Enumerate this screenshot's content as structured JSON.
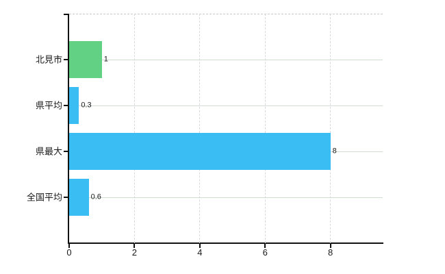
{
  "chart_data": {
    "type": "bar",
    "orientation": "horizontal",
    "title": "",
    "xlabel": "",
    "ylabel": "",
    "categories": [
      "北見市",
      "県平均",
      "県最大",
      "全国平均"
    ],
    "values": [
      1,
      0.3,
      8,
      0.6
    ],
    "value_labels": [
      "1",
      "0.3",
      "8",
      "0.6"
    ],
    "series": [
      {
        "name": "",
        "values": [
          1,
          0.3,
          8,
          0.6
        ]
      }
    ],
    "bar_colors": [
      "#62d183",
      "#39bdf2",
      "#39bdf2",
      "#39bdf2"
    ],
    "xlim": [
      0,
      9.6
    ],
    "xticks": [
      0,
      2,
      4,
      6,
      8
    ],
    "xtick_labels": [
      "0",
      "2",
      "4",
      "6",
      "8"
    ],
    "grid": true,
    "legend": false,
    "colors": {
      "background": "#ffffff",
      "axis": "#111111",
      "text": "#1a1a1a",
      "gridline_horizontal": "#d2dbd2",
      "gridline_vertical": "#d6d9de",
      "plot_top_border": "#c9c9c9",
      "bar_green": "#62d183",
      "bar_blue": "#39bdf2"
    }
  }
}
